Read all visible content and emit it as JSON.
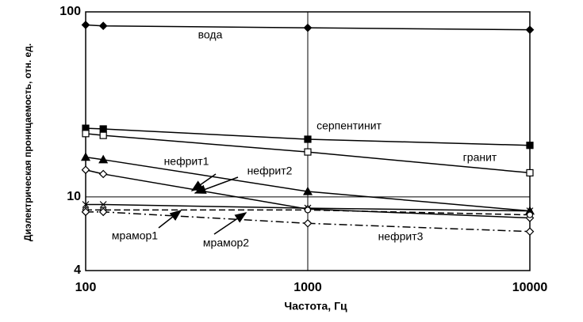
{
  "chart_data": {
    "type": "line",
    "x_label": "Частота, Гц",
    "y_label": "Диэлектрическая проницаемость, отн. ед.",
    "x": [
      100,
      120,
      1000,
      10000
    ],
    "xlim": [
      100,
      10000
    ],
    "xticks": [
      100,
      1000,
      10000
    ],
    "xscale": "log",
    "ylim": [
      4,
      100
    ],
    "yticks": [
      4,
      10,
      100
    ],
    "yscale": "log",
    "grid": true,
    "series": [
      {
        "name": "вода",
        "color": "#000000",
        "marker": "diamond",
        "dash": "solid",
        "values": [
          85,
          84,
          82,
          80
        ]
      },
      {
        "name": "серпентинит",
        "color": "#000000",
        "marker": "square",
        "dash": "solid",
        "values": [
          23.5,
          23.3,
          20.5,
          19
        ]
      },
      {
        "name": "гранит",
        "color": "#000000",
        "marker": "square-open",
        "dash": "solid",
        "values": [
          22,
          21.5,
          17.5,
          13.5
        ]
      },
      {
        "name": "нефрит1",
        "color": "#000000",
        "marker": "triangle",
        "dash": "solid",
        "values": [
          16.4,
          15.9,
          10.7,
          8.4
        ]
      },
      {
        "name": "нефрит2",
        "color": "#000000",
        "marker": "diamond-open",
        "dash": "solid",
        "values": [
          14,
          13.3,
          8.6,
          7.7
        ]
      },
      {
        "name": "мрамор1",
        "color": "#000000",
        "marker": "x",
        "dash": "solid",
        "values": [
          9.1,
          9.1,
          8.7,
          8.4
        ]
      },
      {
        "name": "мрамор2",
        "color": "#000000",
        "marker": "circle-open",
        "dash": "dashed",
        "values": [
          8.5,
          8.5,
          8.5,
          8.0
        ]
      },
      {
        "name": "нефрит3",
        "color": "#000000",
        "marker": "diamond-open",
        "dash": "dashdot",
        "values": [
          8.3,
          8.3,
          7.2,
          6.5
        ]
      }
    ]
  }
}
